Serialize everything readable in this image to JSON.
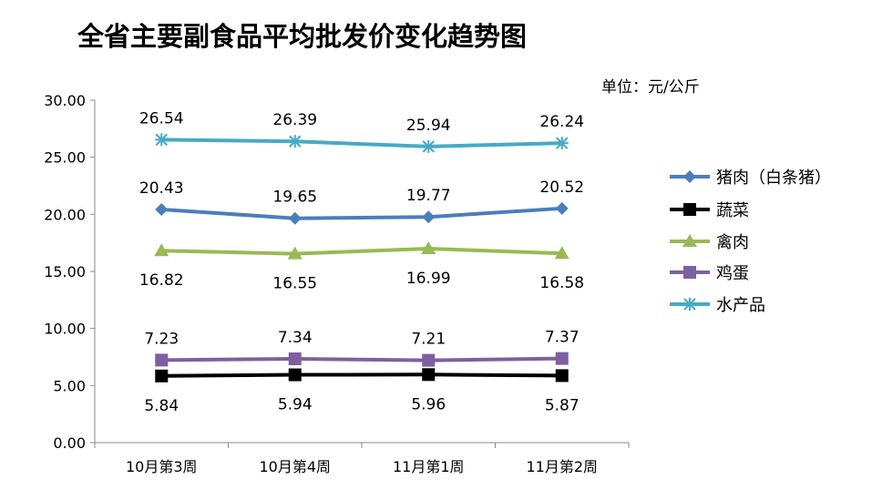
{
  "chart_data": {
    "type": "line",
    "title": "全省主要副食品平均批发价变化趋势图",
    "unit_label": "单位：元/公斤",
    "categories": [
      "10月第3周",
      "10月第4周",
      "11月第1周",
      "11月第2周"
    ],
    "ylim": [
      0,
      30
    ],
    "yticks": [
      "0.00",
      "5.00",
      "10.00",
      "15.00",
      "20.00",
      "25.00",
      "30.00"
    ],
    "grid": false,
    "legend_position": "right",
    "series": [
      {
        "name": "猪肉（白条猪）",
        "values": [
          20.43,
          19.65,
          19.77,
          20.52
        ],
        "labels": [
          "20.43",
          "19.65",
          "19.77",
          "20.52"
        ],
        "color": "#4A7EBB",
        "marker": "diamond",
        "label_pos": "above"
      },
      {
        "name": "蔬菜",
        "values": [
          5.84,
          5.94,
          5.96,
          5.87
        ],
        "labels": [
          "5.84",
          "5.94",
          "5.96",
          "5.87"
        ],
        "color": "#000000",
        "marker": "square",
        "label_pos": "below"
      },
      {
        "name": "禽肉",
        "values": [
          16.82,
          16.55,
          16.99,
          16.58
        ],
        "labels": [
          "16.82",
          "16.55",
          "16.99",
          "16.58"
        ],
        "color": "#98B954",
        "marker": "triangle",
        "label_pos": "below"
      },
      {
        "name": "鸡蛋",
        "values": [
          7.23,
          7.34,
          7.21,
          7.37
        ],
        "labels": [
          "7.23",
          "7.34",
          "7.21",
          "7.37"
        ],
        "color": "#7D60A0",
        "marker": "square",
        "label_pos": "above"
      },
      {
        "name": "水产品",
        "values": [
          26.54,
          26.39,
          25.94,
          26.24
        ],
        "labels": [
          "26.54",
          "26.39",
          "25.94",
          "26.24"
        ],
        "color": "#46AAC5",
        "marker": "asterisk",
        "label_pos": "above"
      }
    ]
  }
}
